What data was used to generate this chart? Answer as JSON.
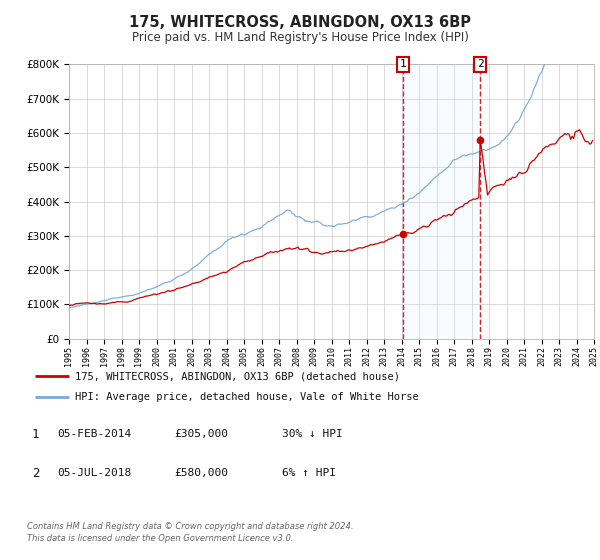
{
  "title": "175, WHITECROSS, ABINGDON, OX13 6BP",
  "subtitle": "Price paid vs. HM Land Registry's House Price Index (HPI)",
  "legend_label_red": "175, WHITECROSS, ABINGDON, OX13 6BP (detached house)",
  "legend_label_blue": "HPI: Average price, detached house, Vale of White Horse",
  "annotation1_date": "05-FEB-2014",
  "annotation1_price": "£305,000",
  "annotation1_hpi": "30% ↓ HPI",
  "annotation1_year": 2014.1,
  "annotation1_value": 305000,
  "annotation2_date": "05-JUL-2018",
  "annotation2_price": "£580,000",
  "annotation2_hpi": "6% ↑ HPI",
  "annotation2_year": 2018.5,
  "annotation2_value": 580000,
  "xmin": 1995,
  "xmax": 2025,
  "ymin": 0,
  "ymax": 800000,
  "red_color": "#cc0000",
  "blue_color": "#7aaadd",
  "grid_color": "#cccccc",
  "background_color": "#ffffff",
  "shade_color": "#ddeeff",
  "footnote1": "Contains HM Land Registry data © Crown copyright and database right 2024.",
  "footnote2": "This data is licensed under the Open Government Licence v3.0."
}
